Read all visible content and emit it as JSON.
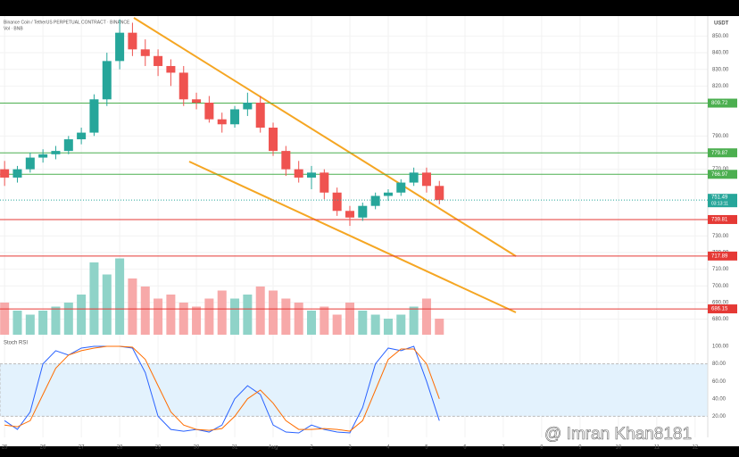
{
  "chart_data": {
    "type": "candlestick",
    "title": "Binance Coin / TetherUS PERPETUAL CONTRACT · BINANCE",
    "subtitle": "Vol · BNB",
    "currency": "USDT",
    "x": [
      0,
      0.333,
      0.667,
      1,
      1.333,
      1.667,
      2,
      2.333,
      2.667,
      3,
      3.333,
      3.667,
      4,
      4.333,
      4.667,
      5,
      5.333,
      5.667,
      6,
      6.333,
      6.667,
      7,
      7.333,
      7.667,
      8,
      8.333,
      8.667,
      9,
      9.333,
      9.667,
      10,
      10.333,
      10.667,
      11,
      11.333
    ],
    "open": [
      770,
      765,
      770,
      777,
      779,
      781,
      788,
      792,
      812,
      835,
      852,
      842,
      838,
      832,
      828,
      812,
      810,
      800,
      797,
      806,
      810,
      795,
      781,
      770,
      765,
      768,
      756,
      745,
      741,
      748,
      754,
      756,
      762,
      768,
      760
    ],
    "high": [
      775,
      772,
      780,
      782,
      784,
      790,
      795,
      815,
      840,
      860,
      858,
      848,
      842,
      836,
      832,
      816,
      814,
      804,
      808,
      816,
      814,
      798,
      784,
      775,
      772,
      770,
      759,
      748,
      750,
      756,
      758,
      764,
      771,
      771,
      763
    ],
    "low": [
      760,
      762,
      768,
      774,
      776,
      779,
      785,
      790,
      808,
      830,
      838,
      832,
      826,
      820,
      808,
      806,
      798,
      792,
      795,
      802,
      792,
      778,
      766,
      762,
      758,
      752,
      742,
      736,
      739,
      746,
      751,
      754,
      760,
      756,
      749
    ],
    "close": [
      765,
      770,
      777,
      779,
      781,
      788,
      792,
      812,
      835,
      852,
      842,
      838,
      832,
      828,
      812,
      810,
      800,
      797,
      806,
      810,
      795,
      781,
      770,
      765,
      768,
      756,
      745,
      741,
      748,
      754,
      756,
      762,
      768,
      760,
      751.49
    ],
    "volume": [
      40,
      30,
      25,
      30,
      35,
      40,
      50,
      90,
      75,
      95,
      70,
      60,
      45,
      50,
      40,
      35,
      45,
      55,
      45,
      50,
      60,
      55,
      45,
      40,
      30,
      35,
      25,
      40,
      30,
      25,
      20,
      25,
      35,
      45,
      20
    ],
    "volume_ylim": [
      0,
      100
    ],
    "up_color": "#26a69a",
    "down_color": "#ef5350",
    "ylim": [
      676,
      862
    ],
    "yticks": [
      {
        "value": 850,
        "label": "850.00"
      },
      {
        "value": 840,
        "label": "840.00"
      },
      {
        "value": 830,
        "label": "830.00"
      },
      {
        "value": 820,
        "label": "820.00"
      },
      {
        "value": 790,
        "label": "790.00"
      },
      {
        "value": 770,
        "label": "770.00"
      },
      {
        "value": 730,
        "label": "730.00"
      },
      {
        "value": 720,
        "label": "720.00"
      },
      {
        "value": 710,
        "label": "710.00"
      },
      {
        "value": 700,
        "label": "700.00"
      },
      {
        "value": 690,
        "label": "690.00"
      },
      {
        "value": 680,
        "label": "680.00"
      }
    ],
    "levels": [
      {
        "value": 809.72,
        "label": "809.72",
        "color": "#4caf50"
      },
      {
        "value": 779.87,
        "label": "779.87",
        "color": "#4caf50"
      },
      {
        "value": 766.97,
        "label": "766.97",
        "color": "#4caf50"
      },
      {
        "value": 739.81,
        "label": "739.81",
        "color": "#e53935"
      },
      {
        "value": 717.89,
        "label": "717.89",
        "color": "#e53935"
      },
      {
        "value": 686.15,
        "label": "686.15",
        "color": "#e53935"
      }
    ],
    "last_price": {
      "value": 751.49,
      "label": "751.49",
      "countdown": "03:13:11"
    },
    "xlim": [
      -0.12,
      18.33
    ],
    "xticks": [
      {
        "value": 0,
        "label": "25"
      },
      {
        "value": 1,
        "label": "26"
      },
      {
        "value": 2,
        "label": "27"
      },
      {
        "value": 3,
        "label": "28"
      },
      {
        "value": 4,
        "label": "29"
      },
      {
        "value": 5,
        "label": "30"
      },
      {
        "value": 6,
        "label": "31"
      },
      {
        "value": 7,
        "label": "Aug"
      },
      {
        "value": 8,
        "label": "2"
      },
      {
        "value": 9,
        "label": "3"
      },
      {
        "value": 10,
        "label": "4"
      },
      {
        "value": 11,
        "label": "5"
      },
      {
        "value": 12,
        "label": "6"
      },
      {
        "value": 13,
        "label": "7"
      },
      {
        "value": 14,
        "label": "8"
      },
      {
        "value": 15,
        "label": "9"
      },
      {
        "value": 16,
        "label": "10"
      },
      {
        "value": 17,
        "label": "11"
      },
      {
        "value": 18,
        "label": "12"
      }
    ],
    "indicator": {
      "title": "Stoch RSI",
      "ylim": [
        0,
        100
      ],
      "band": [
        20,
        80
      ],
      "yticks": [
        {
          "value": 100,
          "label": "100.00"
        },
        {
          "value": 80,
          "label": "80.00"
        },
        {
          "value": 60,
          "label": "60.00"
        },
        {
          "value": 40,
          "label": "40.00"
        },
        {
          "value": 20,
          "label": "20.00"
        }
      ],
      "series": [
        {
          "name": "K",
          "color": "#2962ff",
          "values": [
            15,
            5,
            25,
            80,
            95,
            90,
            98,
            100,
            100,
            100,
            98,
            70,
            20,
            5,
            3,
            5,
            2,
            10,
            40,
            55,
            45,
            10,
            2,
            1,
            10,
            5,
            2,
            1,
            30,
            80,
            98,
            95,
            100,
            60,
            15
          ]
        },
        {
          "name": "D",
          "color": "#ff6d00",
          "values": [
            10,
            8,
            15,
            45,
            75,
            90,
            95,
            98,
            100,
            100,
            99,
            85,
            55,
            25,
            10,
            5,
            4,
            6,
            20,
            40,
            50,
            35,
            15,
            5,
            5,
            6,
            5,
            3,
            15,
            50,
            85,
            97,
            97,
            80,
            40
          ]
        }
      ]
    },
    "watermark": "@ Imran Khan8181"
  }
}
